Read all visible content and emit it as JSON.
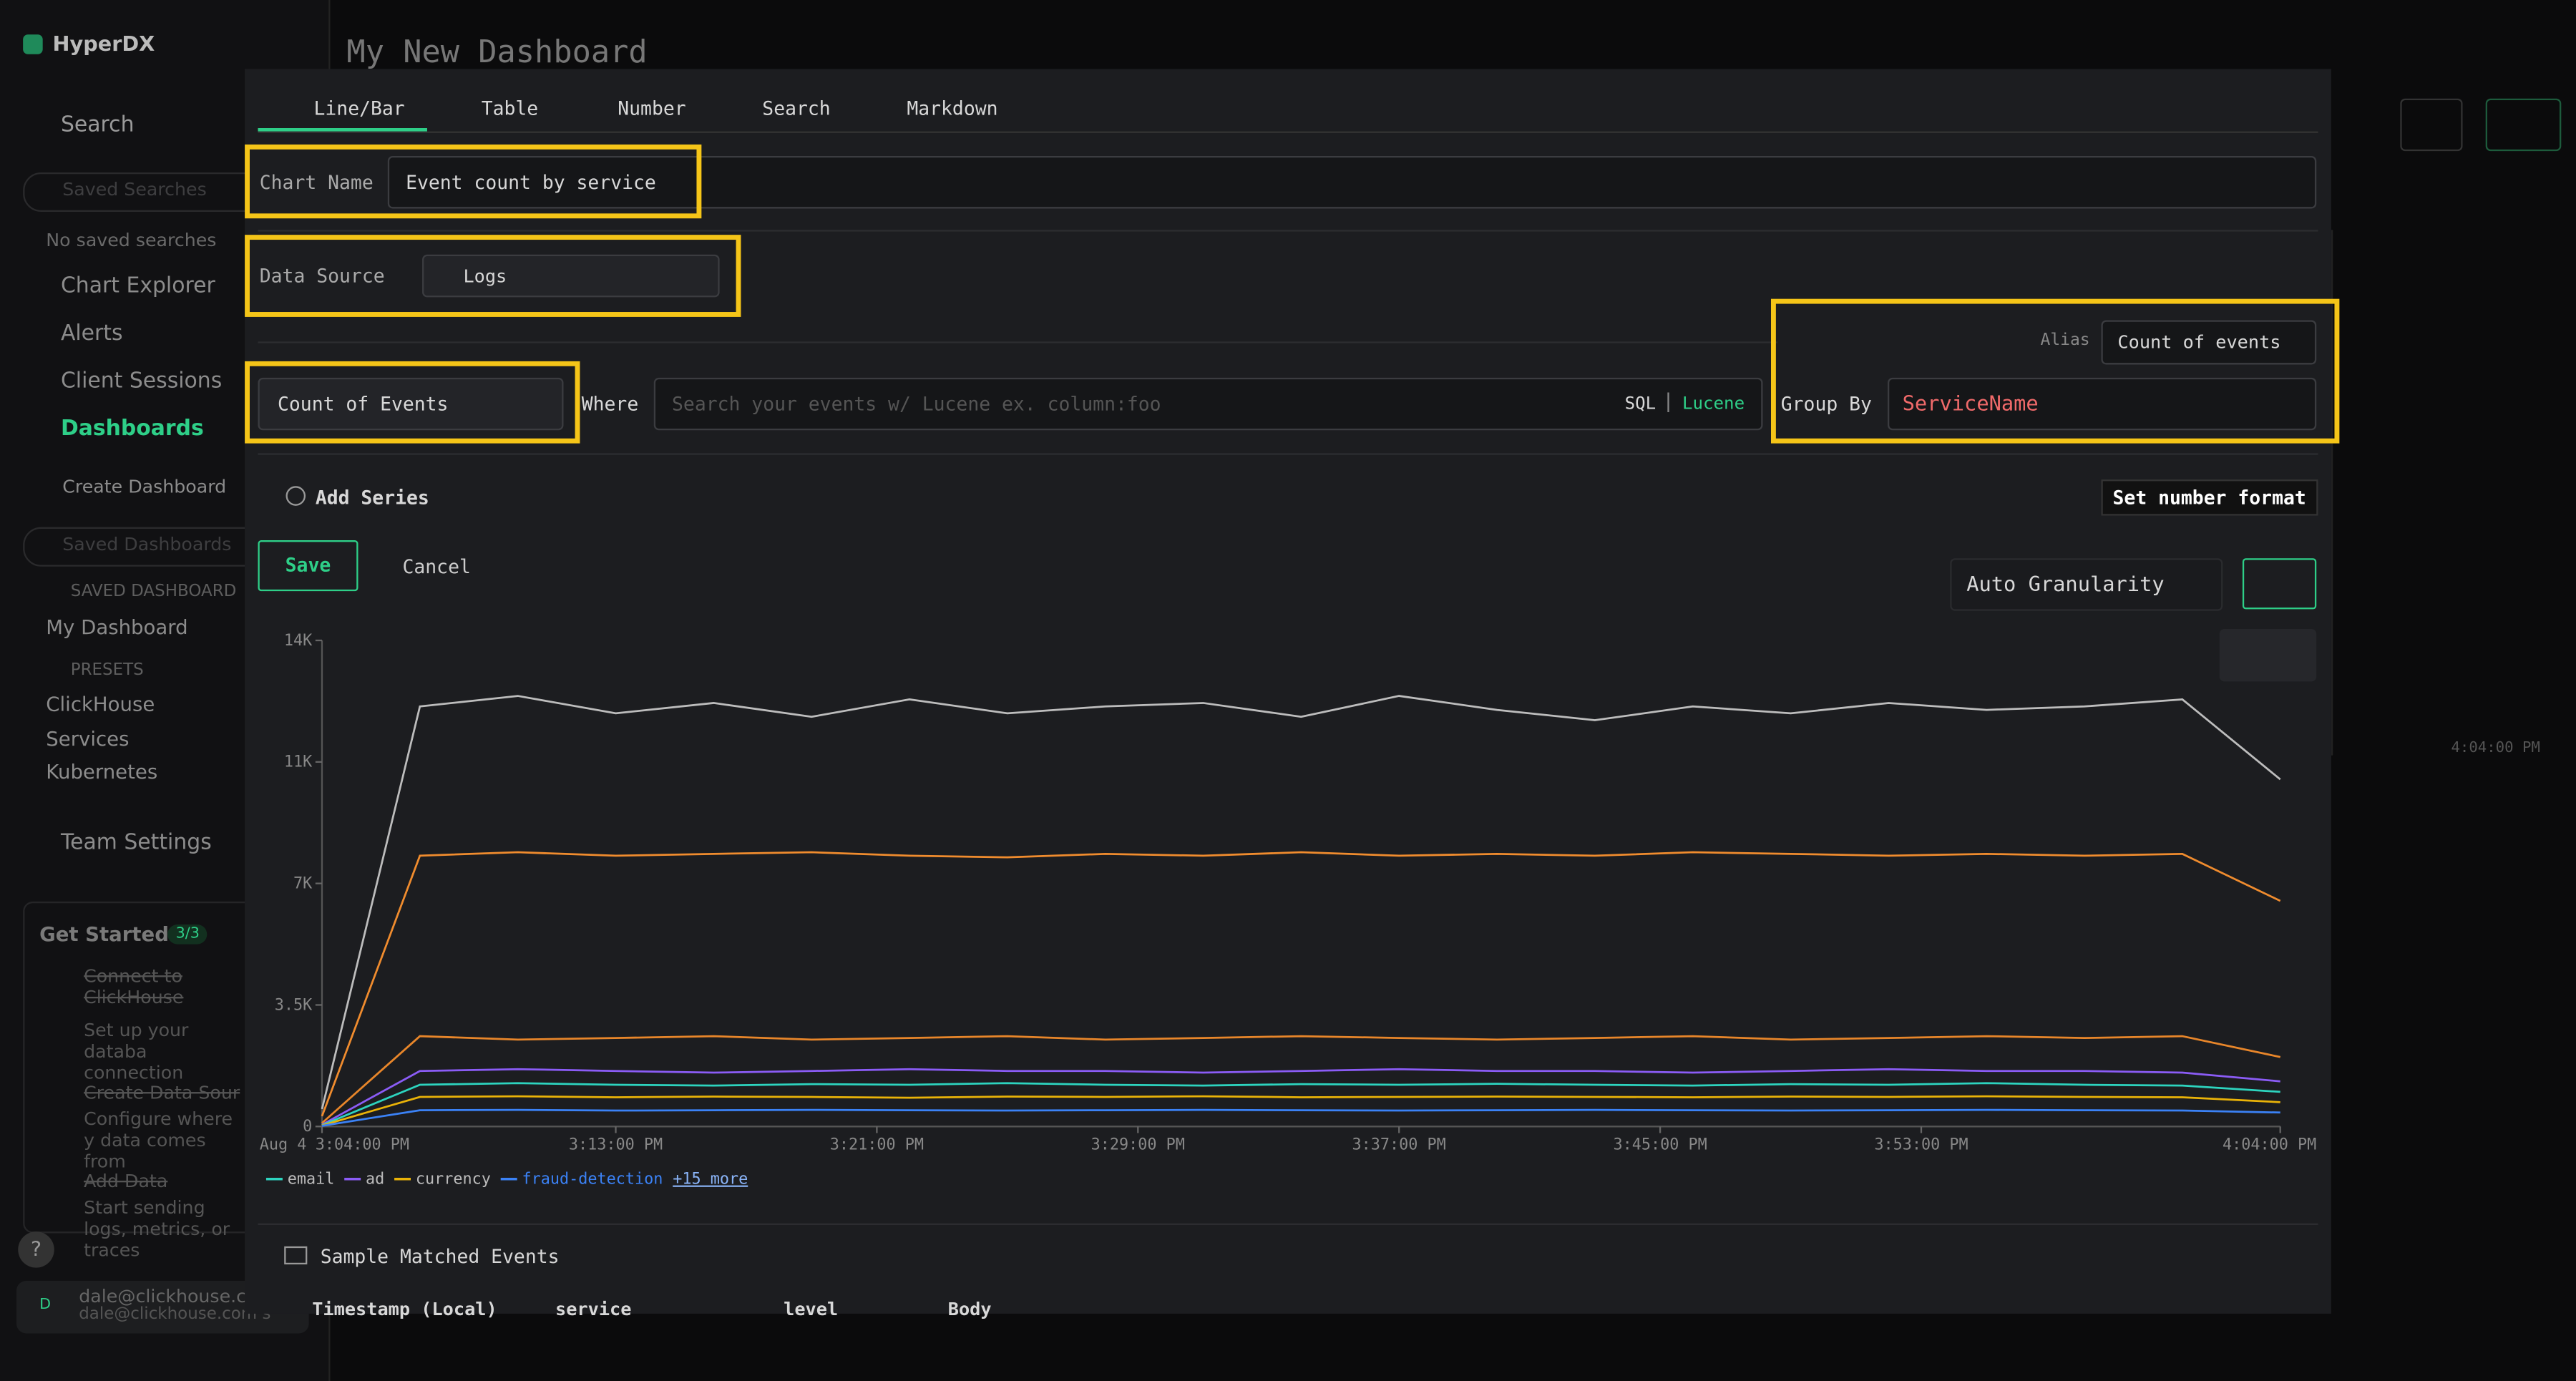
{
  "sidebar": {
    "brand": "HyperDX",
    "search": "Search",
    "saved_searches_placeholder": "Saved Searches",
    "no_saved": "No saved searches",
    "nav": [
      "Chart Explorer",
      "Alerts",
      "Client Sessions",
      "Dashboards"
    ],
    "create_dashboard": "Create Dashboard",
    "saved_dashboards_placeholder": "Saved Dashboards",
    "saved_dashboards_heading": "SAVED DASHBOARD",
    "dashboards": [
      "My Dashboard"
    ],
    "presets_heading": "PRESETS",
    "presets": [
      "ClickHouse",
      "Services",
      "Kubernetes"
    ],
    "team_settings": "Team Settings",
    "get_started": {
      "title": "Get Started",
      "badge": "3/3",
      "steps": [
        {
          "title": "Connect to ClickHouse",
          "desc": "Set up your databa connection"
        },
        {
          "title": "Create Data Sour",
          "desc": "Configure where y data comes from"
        },
        {
          "title": "Add Data",
          "desc": "Start sending logs, metrics, or traces"
        }
      ]
    },
    "help": "?",
    "user": {
      "avatar": "D",
      "name": "dale@clickhouse.c",
      "email": "dale@clickhouse.com s"
    }
  },
  "header": {
    "title": "My New Dashboard",
    "background_axis_label": "4:04:00 PM"
  },
  "modal": {
    "tabs": [
      "Line/Bar",
      "Table",
      "Number",
      "Search",
      "Markdown"
    ],
    "chart_name_label": "Chart Name",
    "chart_name_value": "Event count by service",
    "data_source_label": "Data Source",
    "data_source_value": "Logs",
    "alias_label": "Alias",
    "alias_value": "Count of events",
    "aggregation": "Count of Events",
    "where_label": "Where",
    "where_placeholder": "Search your events w/ Lucene ex. column:foo",
    "sql": "SQL",
    "lucene": "Lucene",
    "group_by_label": "Group By",
    "group_by_value": "ServiceName",
    "add_series": "Add Series",
    "set_number_format": "Set number format",
    "save": "Save",
    "cancel": "Cancel",
    "granularity": "Auto Granularity",
    "sample_events": "Sample Matched Events",
    "columns": [
      "Timestamp (Local)",
      "service",
      "level",
      "Body"
    ]
  },
  "chart_data": {
    "type": "line",
    "x_date_label": "Aug 4",
    "legend_more": "+15 more",
    "x": [
      "3:04:00 PM",
      "3:07:00 PM",
      "3:10:00 PM",
      "3:13:00 PM",
      "3:16:00 PM",
      "3:19:00 PM",
      "3:22:00 PM",
      "3:25:00 PM",
      "3:28:00 PM",
      "3:31:00 PM",
      "3:34:00 PM",
      "3:37:00 PM",
      "3:40:00 PM",
      "3:43:00 PM",
      "3:46:00 PM",
      "3:49:00 PM",
      "3:52:00 PM",
      "3:55:00 PM",
      "3:58:00 PM",
      "4:01:00 PM",
      "4:04:00 PM"
    ],
    "xticks": [
      "3:04:00 PM",
      "3:13:00 PM",
      "3:21:00 PM",
      "3:29:00 PM",
      "3:37:00 PM",
      "3:45:00 PM",
      "3:53:00 PM",
      "4:04:00 PM"
    ],
    "ylim": [
      0,
      14000
    ],
    "yticks": [
      0,
      {
        "value": 3500,
        "label": "3.5K"
      },
      {
        "value": 7000,
        "label": "7K"
      },
      {
        "value": 10500,
        "label": "11K"
      },
      {
        "value": 14000,
        "label": "14K"
      }
    ],
    "series": [
      {
        "color": "#bdbdbd",
        "values": [
          500,
          12100,
          12400,
          11900,
          12200,
          11800,
          12300,
          11900,
          12100,
          12200,
          11800,
          12400,
          12000,
          11700,
          12100,
          11900,
          12200,
          12000,
          12100,
          12300,
          10000
        ]
      },
      {
        "color": "#f08c2e",
        "values": [
          300,
          7800,
          7900,
          7800,
          7850,
          7900,
          7800,
          7750,
          7850,
          7800,
          7900,
          7800,
          7850,
          7800,
          7900,
          7850,
          7800,
          7850,
          7800,
          7850,
          6500
        ]
      },
      {
        "color": "#e8862a",
        "values": [
          100,
          2600,
          2500,
          2550,
          2600,
          2500,
          2550,
          2600,
          2500,
          2550,
          2600,
          2550,
          2500,
          2550,
          2600,
          2500,
          2550,
          2600,
          2550,
          2600,
          2000
        ]
      },
      {
        "name": "ad",
        "color": "#8b5cf6",
        "values": [
          50,
          1600,
          1650,
          1600,
          1550,
          1600,
          1650,
          1600,
          1600,
          1550,
          1600,
          1650,
          1600,
          1600,
          1550,
          1600,
          1650,
          1600,
          1600,
          1550,
          1300
        ]
      },
      {
        "name": "email",
        "color": "#2dd4bf",
        "values": [
          40,
          1200,
          1250,
          1200,
          1180,
          1220,
          1200,
          1250,
          1200,
          1180,
          1220,
          1200,
          1230,
          1200,
          1180,
          1220,
          1200,
          1250,
          1200,
          1180,
          1000
        ]
      },
      {
        "name": "currency",
        "color": "#eab308",
        "values": [
          30,
          850,
          870,
          840,
          860,
          850,
          830,
          860,
          850,
          870,
          840,
          850,
          860,
          850,
          840,
          860,
          850,
          870,
          850,
          840,
          700
        ]
      },
      {
        "name": "fraud-detection",
        "color": "#3b82f6",
        "values": [
          20,
          470,
          480,
          460,
          470,
          480,
          470,
          460,
          470,
          480,
          470,
          460,
          470,
          480,
          470,
          460,
          470,
          480,
          470,
          460,
          400
        ]
      }
    ]
  }
}
